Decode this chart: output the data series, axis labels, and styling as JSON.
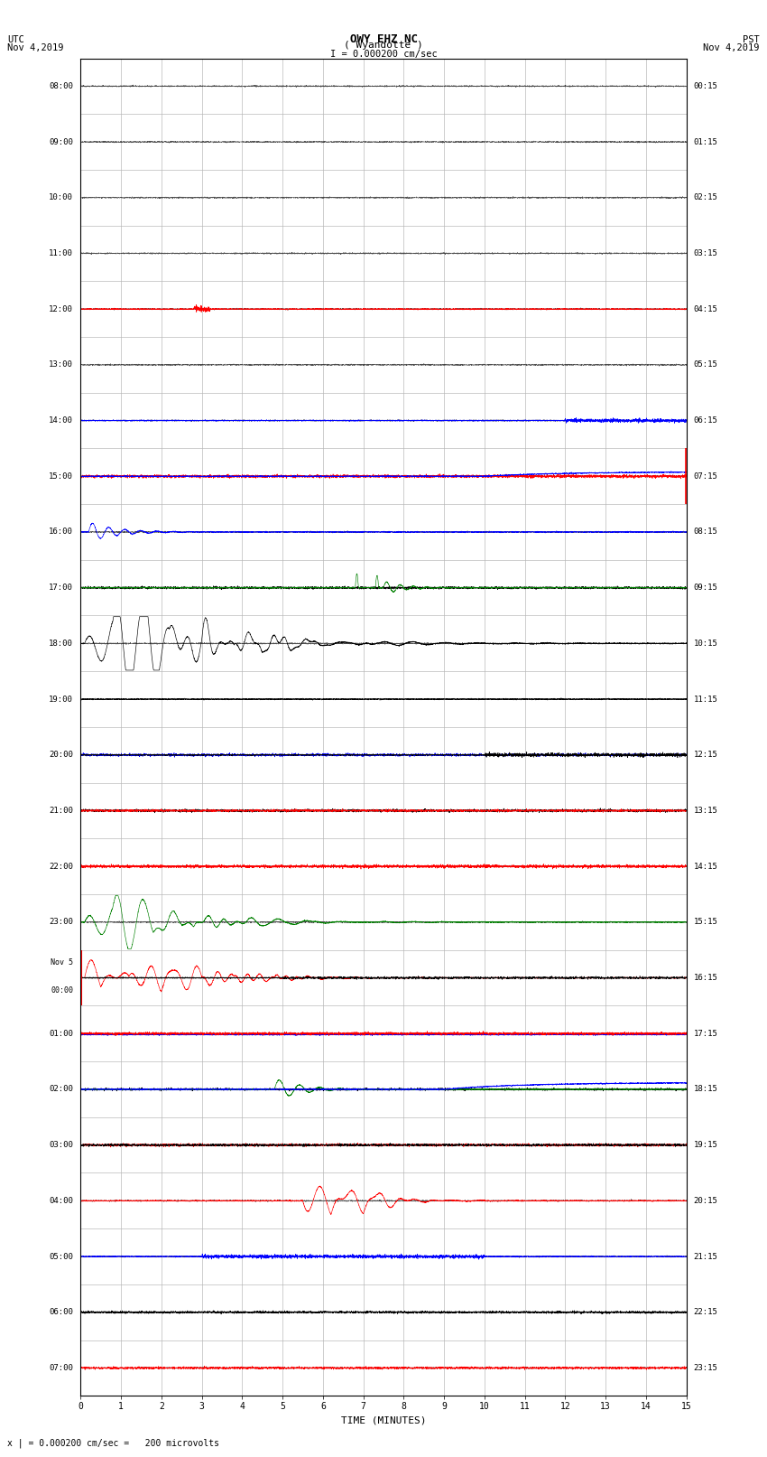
{
  "title_line1": "OWY EHZ NC",
  "title_line2": "( Wyandotte )",
  "title_scale": "I = 0.000200 cm/sec",
  "left_header_line1": "UTC",
  "left_header_line2": "Nov 4,2019",
  "right_header_line1": "PST",
  "right_header_line2": "Nov 4,2019",
  "ylabel_note": "x | = 0.000200 cm/sec =   200 microvolts",
  "xlabel": "TIME (MINUTES)",
  "utc_labels": [
    "08:00",
    "09:00",
    "10:00",
    "11:00",
    "12:00",
    "13:00",
    "14:00",
    "15:00",
    "16:00",
    "17:00",
    "18:00",
    "19:00",
    "20:00",
    "21:00",
    "22:00",
    "23:00",
    "Nov 5\n00:00",
    "01:00",
    "02:00",
    "03:00",
    "04:00",
    "05:00",
    "06:00",
    "07:00"
  ],
  "pst_labels": [
    "00:15",
    "01:15",
    "02:15",
    "03:15",
    "04:15",
    "05:15",
    "06:15",
    "07:15",
    "08:15",
    "09:15",
    "10:15",
    "11:15",
    "12:15",
    "13:15",
    "14:15",
    "15:15",
    "16:15",
    "17:15",
    "18:15",
    "19:15",
    "20:15",
    "21:15",
    "22:15",
    "23:15"
  ],
  "num_rows": 24,
  "minutes": 15,
  "background_color": "#ffffff",
  "grid_color": "#aaaaaa",
  "fig_width": 8.5,
  "fig_height": 16.13
}
